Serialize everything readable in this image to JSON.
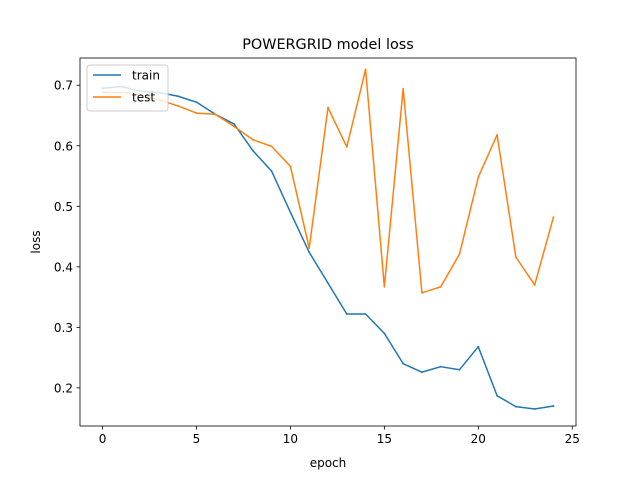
{
  "chart_data": {
    "type": "line",
    "title": "POWERGRID model loss",
    "xlabel": "epoch",
    "ylabel": "loss",
    "xlim": [
      -1.2,
      25.2
    ],
    "ylim": [
      0.137,
      0.745
    ],
    "xticks": [
      0,
      5,
      10,
      15,
      20,
      25
    ],
    "yticks": [
      0.2,
      0.3,
      0.4,
      0.5,
      0.6,
      0.7
    ],
    "xtick_labels": [
      "0",
      "5",
      "10",
      "15",
      "20",
      "25"
    ],
    "ytick_labels": [
      "0.2",
      "0.3",
      "0.4",
      "0.5",
      "0.6",
      "0.7"
    ],
    "grid": false,
    "legend_position": "top-left",
    "x": [
      0,
      1,
      2,
      3,
      4,
      5,
      6,
      7,
      8,
      9,
      10,
      11,
      12,
      13,
      14,
      15,
      16,
      17,
      18,
      19,
      20,
      21,
      22,
      23,
      24
    ],
    "series": [
      {
        "name": "train",
        "color": "#1f77b4",
        "values": [
          0.695,
          0.698,
          0.69,
          0.688,
          0.682,
          0.672,
          0.652,
          0.636,
          0.592,
          0.558,
          0.49,
          0.424,
          0.373,
          0.322,
          0.322,
          0.29,
          0.24,
          0.226,
          0.235,
          0.23,
          0.268,
          0.187,
          0.169,
          0.165,
          0.17
        ]
      },
      {
        "name": "test",
        "color": "#ff7f0e",
        "values": [
          0.688,
          0.688,
          0.685,
          0.676,
          0.666,
          0.654,
          0.652,
          0.632,
          0.61,
          0.599,
          0.566,
          0.431,
          0.663,
          0.598,
          0.726,
          0.367,
          0.694,
          0.357,
          0.367,
          0.421,
          0.548,
          0.618,
          0.416,
          0.37,
          0.482
        ]
      }
    ]
  }
}
